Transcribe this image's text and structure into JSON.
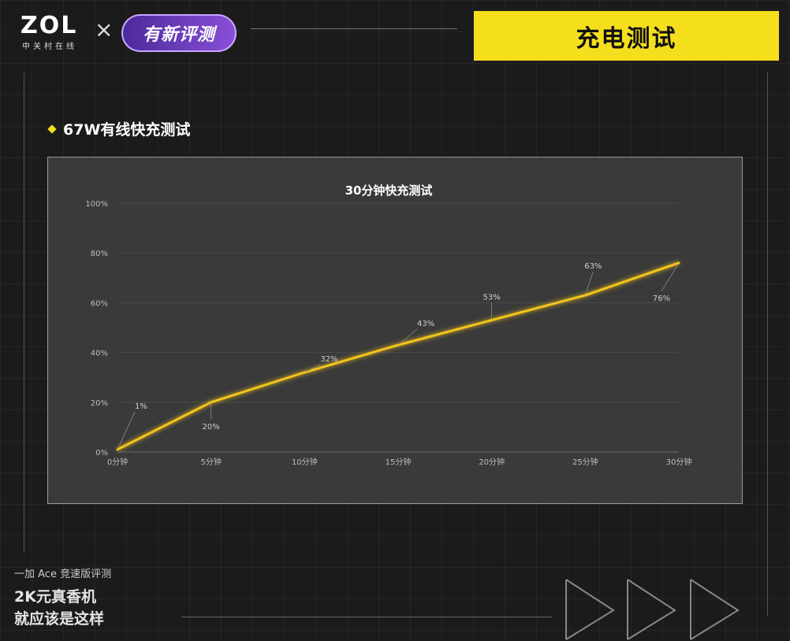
{
  "header": {
    "logo_text": "ZOL",
    "logo_subtext": "中关村在线",
    "times_symbol": "×",
    "badge_text": "有新评测",
    "title": "充电测试"
  },
  "section": {
    "heading": "67W有线快充测试"
  },
  "footer": {
    "subtitle": "一加 Ace 竞速版评测",
    "line1": "2K元真香机",
    "line2": "就应该是这样"
  },
  "colors": {
    "accent": "#f5df1c",
    "line": "#f2c41c",
    "plot_bg": "#3a3a3a"
  },
  "chart_data": {
    "type": "line",
    "title": "30分钟快充测试",
    "xlabel": "",
    "ylabel": "",
    "categories": [
      "0分钟",
      "5分钟",
      "10分钟",
      "15分钟",
      "20分钟",
      "25分钟",
      "30分钟"
    ],
    "series": [
      {
        "values": [
          1,
          20,
          32,
          43,
          53,
          63,
          76
        ],
        "labels": [
          "1%",
          "20%",
          "32%",
          "43%",
          "53%",
          "63%",
          "76%"
        ]
      }
    ],
    "y_ticks": [
      "0%",
      "20%",
      "40%",
      "60%",
      "80%",
      "100%"
    ],
    "ylim": [
      0,
      100
    ],
    "grid": true,
    "legend": "none"
  }
}
